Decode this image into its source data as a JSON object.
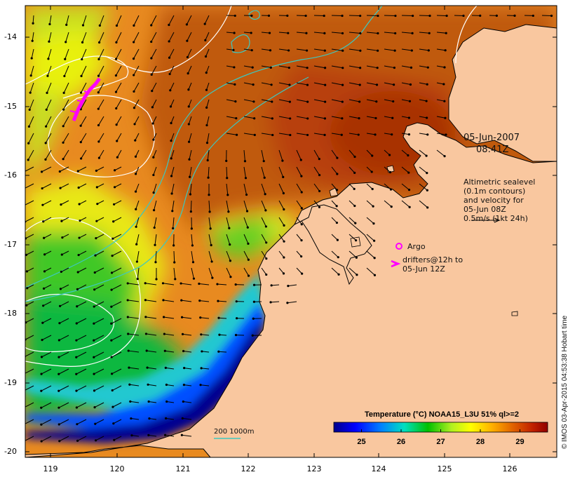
{
  "date_label_line1": "05-Jun-2007",
  "date_label_line2": "08:41Z",
  "altimetry_note": [
    "Altimetric sealevel",
    "(0.1m contours)",
    "and velocity for",
    "05-Jun 08Z",
    "0.5m/s (1kt 24h)"
  ],
  "argo_label": "Argo",
  "drifters_line1": "drifters@12h to",
  "drifters_line2": "05-Jun 12Z",
  "bathymetry_label": "200 1000m",
  "legend_title": "Temperature (°C) NOAA15_L3U 51% ql>=2",
  "colorbar_labels": [
    "25",
    "26",
    "27",
    "28",
    "29"
  ],
  "colorbar_range": [
    24.3,
    29.7
  ],
  "lat_labels": [
    "-14",
    "-15",
    "-16",
    "-17",
    "-18",
    "-19",
    "-20"
  ],
  "lon_labels": [
    "119",
    "120",
    "121",
    "122",
    "123",
    "124",
    "125",
    "126"
  ],
  "credit": "© IMOS 03-Apr-2015 04:53:38 Hobart time",
  "colors": {
    "land": "#f9c79f",
    "contour_white": "#ffffff",
    "bathymetry_contour": "#3cc8c0",
    "argo_marker": "#ff00ff",
    "drifter_marker": "#ff00ff"
  }
}
